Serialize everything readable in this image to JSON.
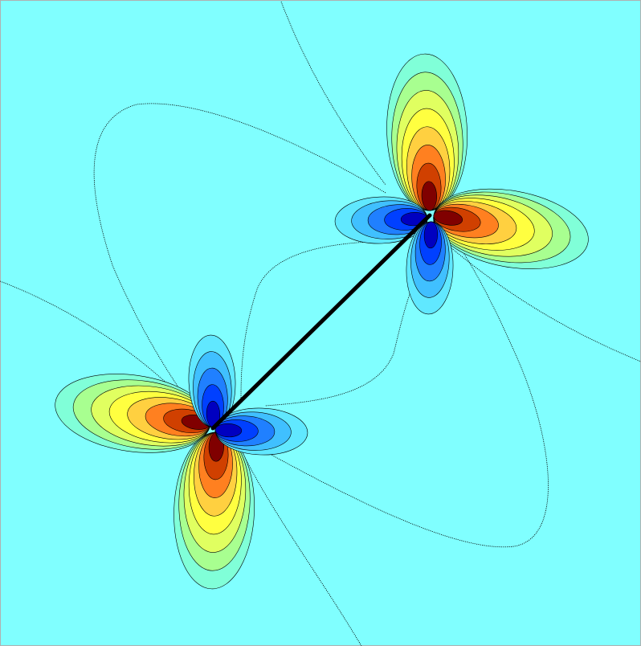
{
  "figure": {
    "description_type": "stress-field contour plot around a crack with two tips",
    "colormap": "jet",
    "colors": {
      "background": "#80ffff",
      "level_pos_1": "#80ffd8",
      "level_pos_2": "#a8ff90",
      "level_pos_3": "#e0ff60",
      "level_pos_4": "#ffff40",
      "level_pos_5": "#ffd040",
      "level_pos_6": "#ff8020",
      "level_pos_7": "#d04000",
      "level_pos_8": "#800000",
      "level_neg_1": "#60e8ff",
      "level_neg_2": "#40c0ff",
      "level_neg_3": "#2080ff",
      "level_neg_4": "#0040ff",
      "level_neg_5": "#0000c0",
      "crack": "#000000",
      "frame": "#b0b0b0"
    }
  }
}
